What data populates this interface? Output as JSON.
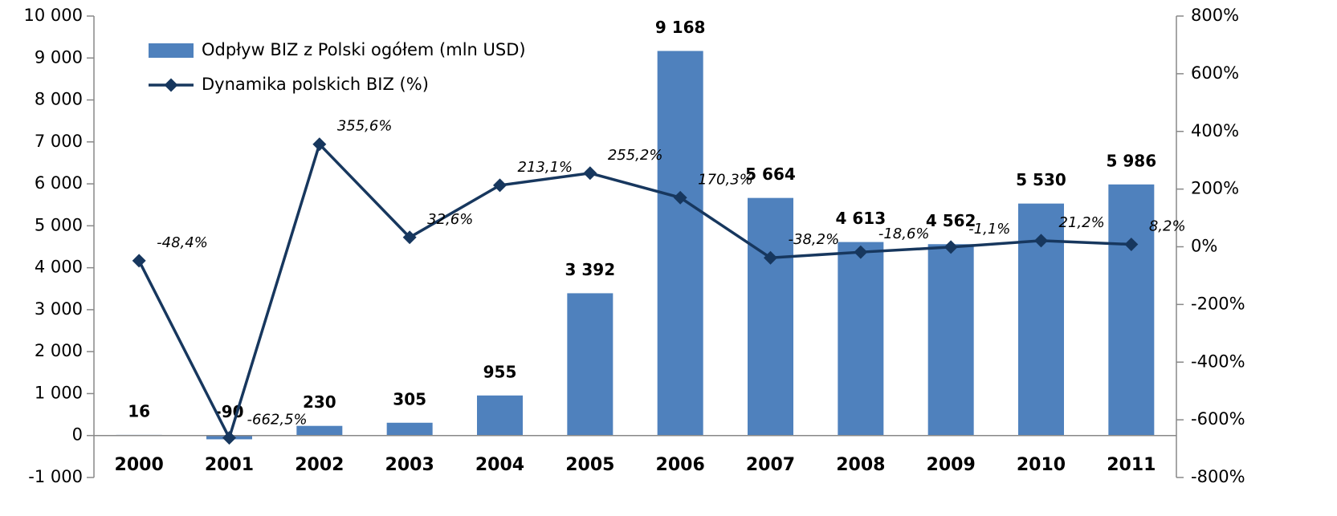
{
  "chart_data": {
    "type": "bar_line",
    "categories": [
      "2000",
      "2001",
      "2002",
      "2003",
      "2004",
      "2005",
      "2006",
      "2007",
      "2008",
      "2009",
      "2010",
      "2011"
    ],
    "series": [
      {
        "name": "Odpływ BIZ z Polski ogółem (mln USD)",
        "type": "bar",
        "color": "#4f81bd",
        "values": [
          16,
          -90,
          230,
          305,
          955,
          3392,
          9168,
          5664,
          4613,
          4562,
          5530,
          5986
        ],
        "value_labels": [
          "16",
          "-90",
          "230",
          "305",
          "955",
          "3 392",
          "9 168",
          "5 664",
          "4 613",
          "4 562",
          "5 530",
          "5 986"
        ]
      },
      {
        "name": "Dynamika polskich BIZ (%)",
        "type": "line",
        "axis": "y2",
        "color": "#17375e",
        "values": [
          -48.4,
          -662.5,
          355.6,
          32.6,
          213.1,
          255.2,
          170.3,
          -38.2,
          -18.6,
          -1.1,
          21.2,
          8.2
        ],
        "value_labels": [
          "-48,4%",
          "-662,5%",
          "355,6%",
          "32,6%",
          "213,1%",
          "255,2%",
          "170,3%",
          "-38,2%",
          "-18,6%",
          "-1,1%",
          "21,2%",
          "8,2%"
        ]
      }
    ],
    "ylim": [
      -1000,
      10000
    ],
    "yticks": [
      {
        "value": -1000,
        "label": "-1 000"
      },
      0,
      {
        "value": 1000,
        "label": "1 000"
      },
      {
        "value": 2000,
        "label": "2 000"
      },
      {
        "value": 3000,
        "label": "3 000"
      },
      {
        "value": 4000,
        "label": "4 000"
      },
      {
        "value": 5000,
        "label": "5 000"
      },
      {
        "value": 6000,
        "label": "6 000"
      },
      {
        "value": 7000,
        "label": "7 000"
      },
      {
        "value": 8000,
        "label": "8 000"
      },
      {
        "value": 9000,
        "label": "9 000"
      },
      {
        "value": 10000,
        "label": "10 000"
      }
    ],
    "y2lim": [
      -800,
      800
    ],
    "y2ticks": [
      {
        "value": -800,
        "label": "-800%"
      },
      {
        "value": -600,
        "label": "-600%"
      },
      {
        "value": -400,
        "label": "-400%"
      },
      {
        "value": -200,
        "label": "-200%"
      },
      {
        "value": 0,
        "label": "0%"
      },
      {
        "value": 200,
        "label": "200%"
      },
      {
        "value": 400,
        "label": "400%"
      },
      {
        "value": 600,
        "label": "600%"
      },
      {
        "value": 800,
        "label": "800%"
      }
    ],
    "legend": "upper left",
    "grid": false
  }
}
